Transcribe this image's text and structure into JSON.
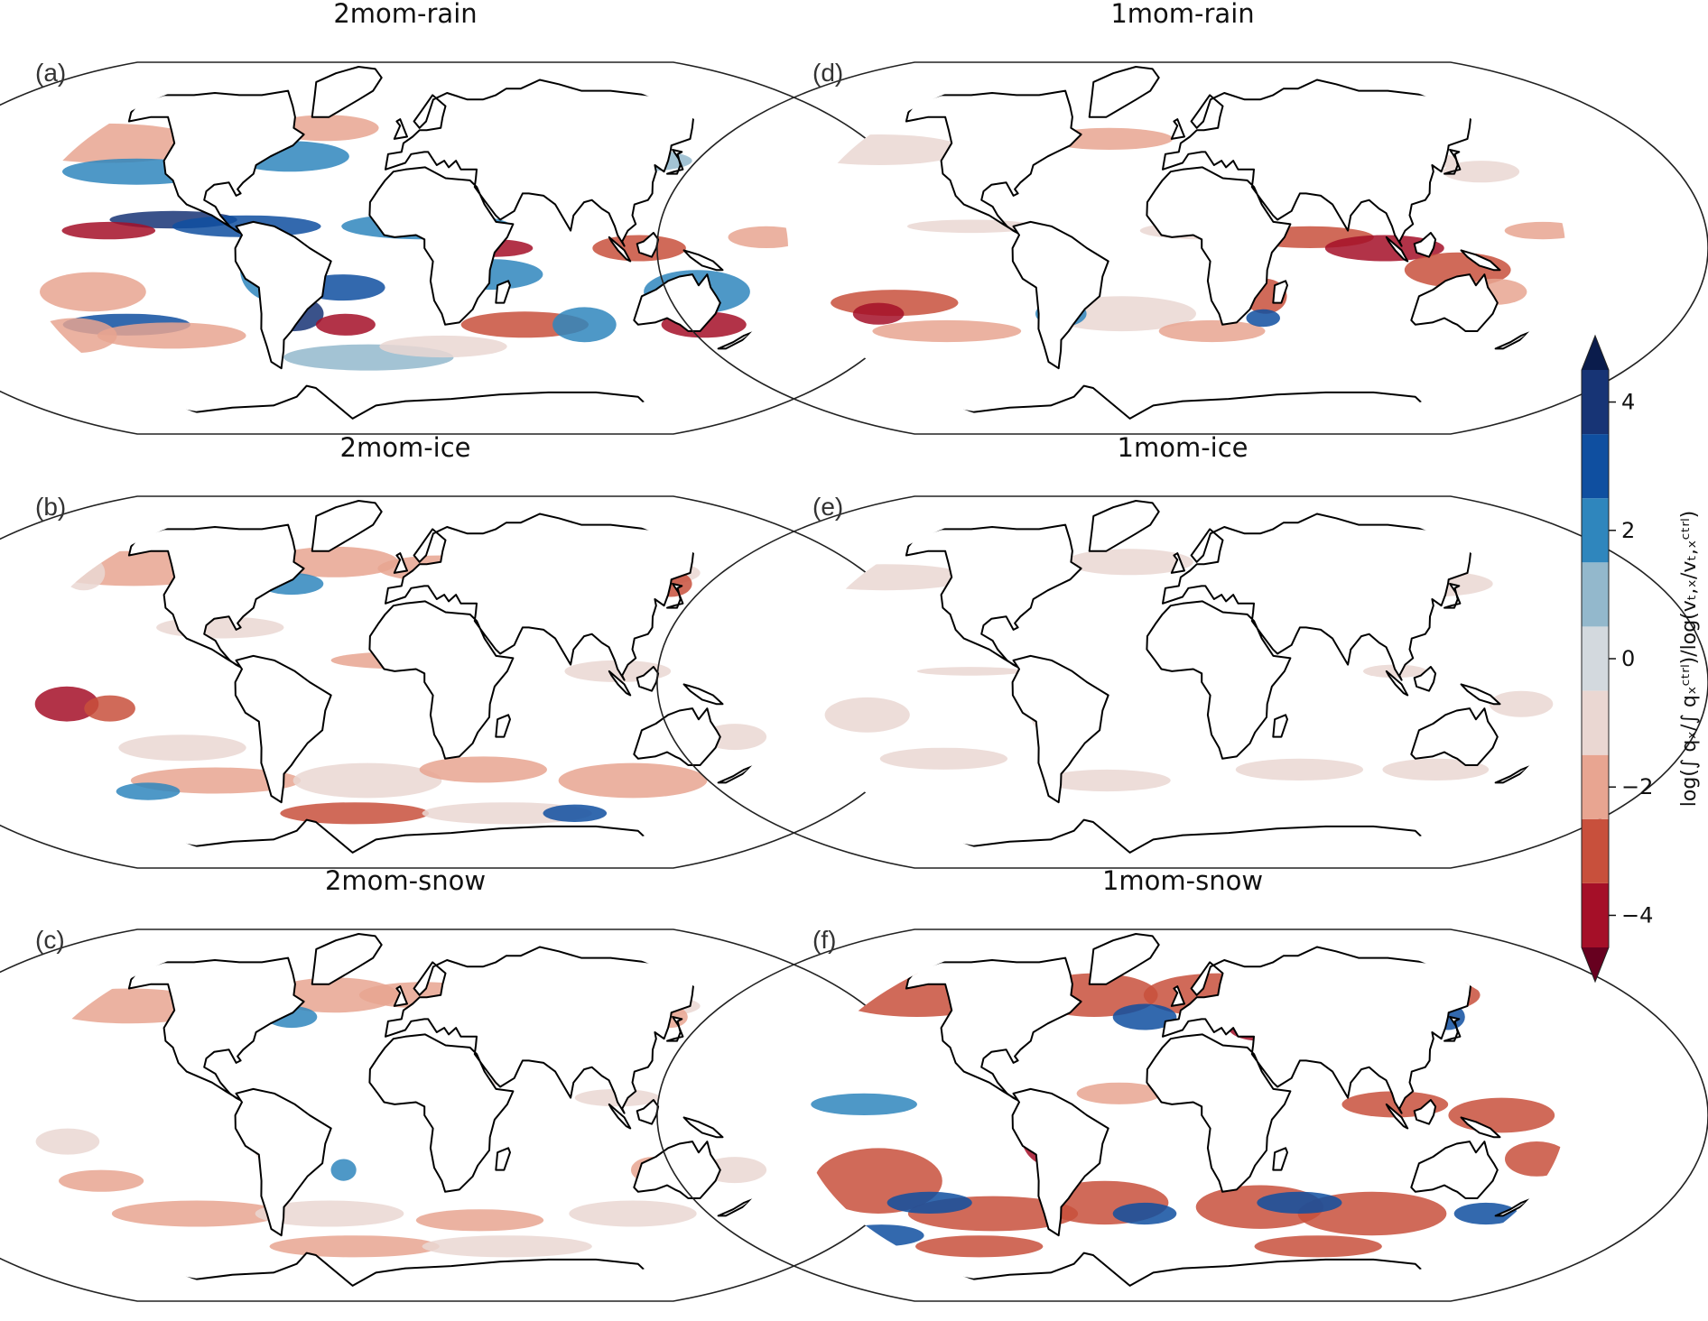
{
  "chart_data": {
    "type": "heatmap",
    "projection": "Robinson global map",
    "panels": [
      {
        "letter": "(a)",
        "title": "2mom-rain",
        "blobs": [
          [
            -160,
            48,
            45,
            9,
            -1.6
          ],
          [
            -135,
            35,
            35,
            6,
            1.6
          ],
          [
            -60,
            42,
            28,
            7,
            2.4
          ],
          [
            -45,
            55,
            25,
            6,
            -1.8
          ],
          [
            -110,
            13,
            30,
            4,
            3.6
          ],
          [
            -140,
            8,
            22,
            4,
            -4.2
          ],
          [
            -75,
            10,
            35,
            5,
            2.6
          ],
          [
            -150,
            -20,
            25,
            9,
            -2.2
          ],
          [
            -140,
            -35,
            30,
            5,
            2.6
          ],
          [
            -120,
            -40,
            35,
            6,
            -1.6
          ],
          [
            -60,
            -10,
            18,
            15,
            2.4
          ],
          [
            -55,
            -30,
            14,
            8,
            3.6
          ],
          [
            -30,
            -35,
            14,
            5,
            -3.8
          ],
          [
            -30,
            -18,
            20,
            6,
            2.6
          ],
          [
            10,
            10,
            40,
            6,
            1.8
          ],
          [
            40,
            -12,
            25,
            7,
            2.4
          ],
          [
            42,
            0,
            18,
            4,
            -4.2
          ],
          [
            60,
            -35,
            30,
            6,
            -2.8
          ],
          [
            90,
            -35,
            15,
            8,
            1.8
          ],
          [
            110,
            0,
            22,
            6,
            -2.6
          ],
          [
            140,
            -20,
            25,
            10,
            2.4
          ],
          [
            150,
            -35,
            20,
            6,
            -3.8
          ],
          [
            120,
            40,
            25,
            5,
            1.4
          ],
          [
            -20,
            -50,
            40,
            6,
            1.4
          ],
          [
            20,
            -45,
            30,
            5,
            -1.4
          ],
          [
            170,
            5,
            18,
            5,
            -2.4
          ],
          [
            -170,
            -40,
            20,
            8,
            -2.0
          ]
        ]
      },
      {
        "letter": "(d)",
        "title": "1mom-rain",
        "blobs": [
          [
            -160,
            45,
            40,
            7,
            -1.4
          ],
          [
            -40,
            50,
            30,
            5,
            -1.6
          ],
          [
            -30,
            -30,
            35,
            8,
            -1.4
          ],
          [
            -140,
            -25,
            30,
            6,
            -2.6
          ],
          [
            -150,
            -30,
            12,
            5,
            -4.2
          ],
          [
            -120,
            -38,
            35,
            5,
            -1.8
          ],
          [
            -60,
            -8,
            14,
            10,
            -1.4
          ],
          [
            60,
            5,
            30,
            5,
            -3.4
          ],
          [
            95,
            0,
            28,
            6,
            -3.6
          ],
          [
            130,
            -10,
            25,
            8,
            -2.6
          ],
          [
            150,
            -20,
            15,
            6,
            -2.4
          ],
          [
            170,
            8,
            18,
            4,
            -2.4
          ],
          [
            120,
            40,
            20,
            4,
            -1.0
          ],
          [
            150,
            35,
            18,
            5,
            -1.0
          ],
          [
            -60,
            -30,
            12,
            6,
            2.4
          ],
          [
            40,
            -22,
            10,
            8,
            -3.0
          ],
          [
            15,
            -38,
            25,
            5,
            -1.6
          ],
          [
            -100,
            10,
            30,
            3,
            -1.4
          ],
          [
            10,
            8,
            30,
            4,
            -1.4
          ],
          [
            40,
            -32,
            8,
            4,
            3.2
          ]
        ]
      },
      {
        "letter": "(b)",
        "title": "2mom-ice",
        "blobs": [
          [
            -150,
            52,
            45,
            8,
            -1.6
          ],
          [
            -40,
            55,
            30,
            7,
            -2.0
          ],
          [
            -60,
            45,
            15,
            5,
            1.8
          ],
          [
            20,
            52,
            30,
            6,
            -1.8
          ],
          [
            120,
            50,
            35,
            7,
            -1.4
          ],
          [
            140,
            45,
            10,
            6,
            -2.6
          ],
          [
            -160,
            -10,
            15,
            8,
            -3.6
          ],
          [
            -140,
            -12,
            12,
            6,
            -3.4
          ],
          [
            -110,
            -30,
            30,
            6,
            -1.4
          ],
          [
            -100,
            -45,
            40,
            6,
            -2.0
          ],
          [
            -140,
            -50,
            15,
            4,
            2.4
          ],
          [
            -20,
            -45,
            35,
            8,
            -1.4
          ],
          [
            40,
            -40,
            30,
            6,
            -2.0
          ],
          [
            120,
            -45,
            35,
            8,
            -1.6
          ],
          [
            160,
            -25,
            15,
            6,
            -1.4
          ],
          [
            -60,
            -10,
            15,
            10,
            -1.4
          ],
          [
            0,
            10,
            35,
            4,
            -1.6
          ],
          [
            100,
            5,
            25,
            5,
            -1.4
          ],
          [
            -90,
            25,
            30,
            5,
            -1.4
          ],
          [
            -30,
            -60,
            35,
            5,
            -2.8
          ],
          [
            60,
            -60,
            40,
            5,
            -1.4
          ],
          [
            100,
            -60,
            15,
            4,
            2.6
          ],
          [
            -175,
            50,
            10,
            8,
            -1.4
          ]
        ]
      },
      {
        "letter": "(e)",
        "title": "1mom-ice",
        "blobs": [
          [
            -160,
            48,
            40,
            6,
            -0.8
          ],
          [
            -30,
            55,
            30,
            6,
            -0.8
          ],
          [
            40,
            45,
            25,
            5,
            -0.8
          ],
          [
            130,
            45,
            30,
            6,
            -0.8
          ],
          [
            -150,
            -15,
            20,
            8,
            -0.8
          ],
          [
            -120,
            -35,
            30,
            5,
            -0.8
          ],
          [
            -40,
            -45,
            30,
            5,
            -0.8
          ],
          [
            60,
            -40,
            30,
            5,
            -0.8
          ],
          [
            130,
            -40,
            25,
            5,
            -0.8
          ],
          [
            -100,
            5,
            25,
            2,
            -0.8
          ],
          [
            20,
            8,
            30,
            3,
            -0.8
          ],
          [
            100,
            5,
            15,
            3,
            -0.8
          ],
          [
            160,
            -10,
            15,
            6,
            -0.8
          ],
          [
            -60,
            -15,
            12,
            10,
            -0.8
          ]
        ]
      },
      {
        "letter": "(c)",
        "title": "2mom-snow",
        "blobs": [
          [
            -150,
            50,
            40,
            8,
            -1.6
          ],
          [
            -40,
            55,
            30,
            8,
            -2.4
          ],
          [
            -60,
            45,
            12,
            5,
            2.0
          ],
          [
            10,
            55,
            30,
            6,
            -1.6
          ],
          [
            120,
            50,
            35,
            6,
            -1.4
          ],
          [
            -160,
            -12,
            15,
            6,
            -1.4
          ],
          [
            -150,
            -30,
            20,
            5,
            -1.6
          ],
          [
            -110,
            -45,
            40,
            6,
            -1.6
          ],
          [
            -40,
            -45,
            35,
            6,
            -1.4
          ],
          [
            40,
            -48,
            30,
            5,
            -1.6
          ],
          [
            120,
            -45,
            30,
            6,
            -1.4
          ],
          [
            160,
            -25,
            15,
            6,
            -1.4
          ],
          [
            -60,
            -15,
            12,
            8,
            -1.4
          ],
          [
            -30,
            -60,
            40,
            5,
            -1.8
          ],
          [
            60,
            -60,
            40,
            5,
            -1.4
          ],
          [
            120,
            -25,
            10,
            6,
            -1.6
          ],
          [
            20,
            15,
            25,
            3,
            -1.0
          ],
          [
            100,
            8,
            20,
            4,
            -1.4
          ],
          [
            -30,
            -25,
            6,
            5,
            2.2
          ],
          [
            140,
            45,
            8,
            5,
            -2.2
          ]
        ]
      },
      {
        "letter": "(f)",
        "title": "1mom-snow",
        "blobs": [
          [
            -150,
            55,
            40,
            10,
            -3.0
          ],
          [
            -50,
            55,
            30,
            10,
            -3.4
          ],
          [
            20,
            55,
            35,
            10,
            -3.2
          ],
          [
            120,
            55,
            40,
            10,
            -3.0
          ],
          [
            -90,
            45,
            20,
            6,
            3.0
          ],
          [
            -20,
            45,
            15,
            6,
            3.0
          ],
          [
            40,
            40,
            15,
            6,
            -4.2
          ],
          [
            140,
            45,
            8,
            6,
            3.0
          ],
          [
            -150,
            -30,
            30,
            15,
            -3.4
          ],
          [
            -100,
            -45,
            40,
            8,
            -3.0
          ],
          [
            -130,
            -40,
            20,
            5,
            3.0
          ],
          [
            -40,
            -40,
            30,
            10,
            -3.0
          ],
          [
            -20,
            -45,
            15,
            5,
            3.2
          ],
          [
            40,
            -42,
            30,
            10,
            -3.4
          ],
          [
            100,
            -45,
            35,
            10,
            -3.0
          ],
          [
            60,
            -40,
            20,
            5,
            3.0
          ],
          [
            -60,
            -10,
            16,
            14,
            -3.8
          ],
          [
            -150,
            5,
            25,
            5,
            2.4
          ],
          [
            -30,
            10,
            20,
            5,
            -2.4
          ],
          [
            100,
            5,
            25,
            6,
            -3.4
          ],
          [
            150,
            0,
            25,
            8,
            -3.0
          ],
          [
            170,
            -20,
            15,
            8,
            -3.4
          ],
          [
            -170,
            -55,
            20,
            5,
            2.6
          ],
          [
            80,
            -60,
            30,
            5,
            -3.0
          ],
          [
            160,
            -45,
            15,
            5,
            3.2
          ],
          [
            -120,
            -60,
            30,
            5,
            -3.0
          ]
        ]
      }
    ],
    "colorbar": {
      "ticks": [
        4,
        2,
        0,
        -2,
        -4
      ],
      "tick_labels": [
        "4",
        "2",
        "0",
        "−2",
        "−4"
      ],
      "levels": [
        -5,
        -4.5,
        -3.5,
        -2.5,
        -1.5,
        -0.5,
        0.5,
        1.5,
        2.5,
        3.5,
        4.5,
        5
      ],
      "colors": [
        "#67001f",
        "#a50f28",
        "#c8503c",
        "#e8a591",
        "#ead7d2",
        "#d3d9de",
        "#93b8cc",
        "#2f86bd",
        "#0f4fa0",
        "#173475",
        "#0a1c4c"
      ],
      "label": "log(∫ qₓ/∫ qₓᶜᵗʳˡ)/log(vₜ,ₓ/vₜ,ₓᶜᵗʳˡ)",
      "extend": "both"
    }
  }
}
